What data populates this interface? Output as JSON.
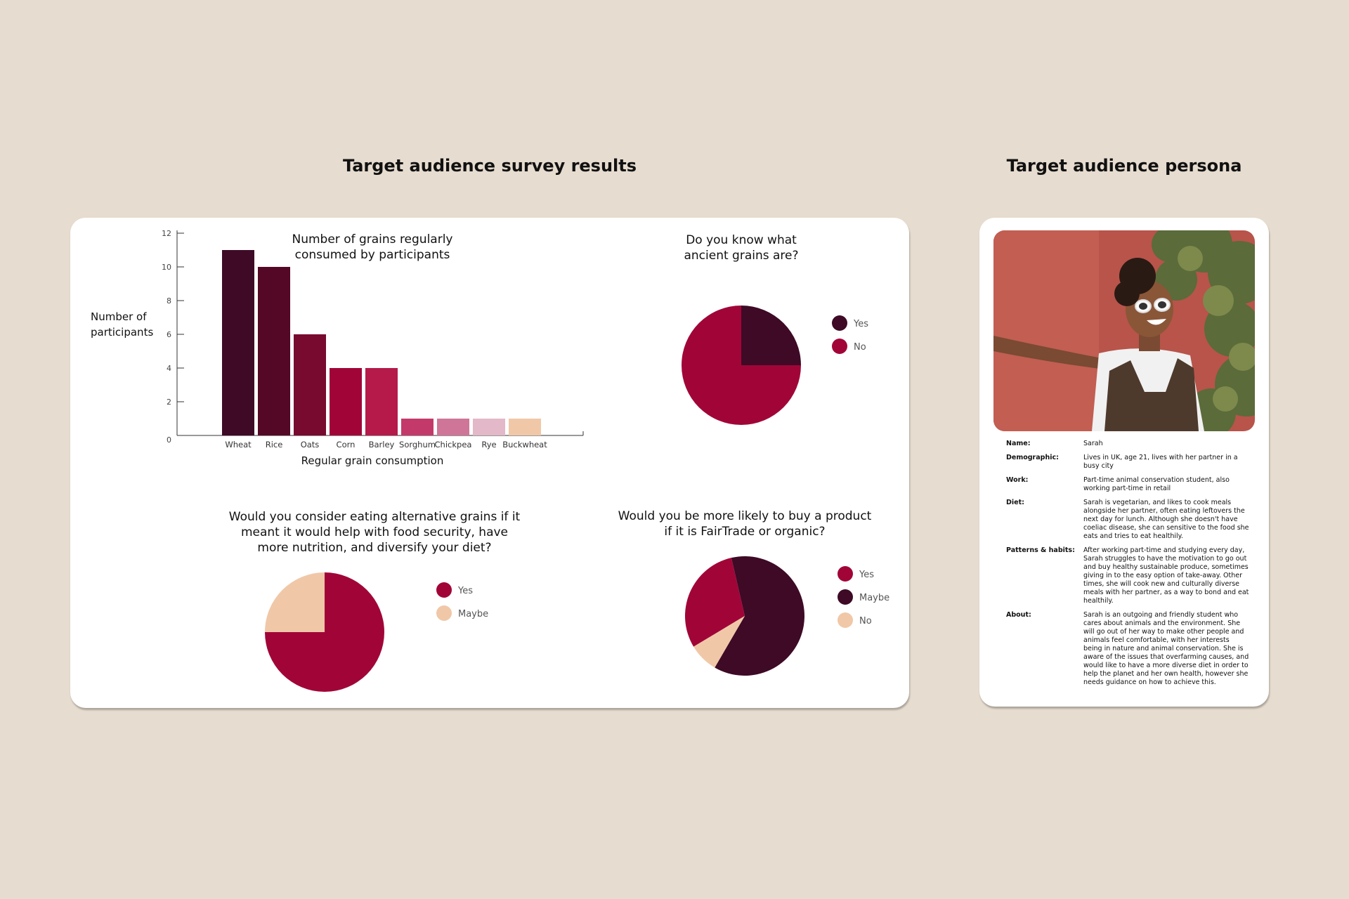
{
  "survey_title": "Target audience survey results",
  "persona_title": "Target audience persona",
  "colors": {
    "background": "#e6dccf",
    "darkest": "#3e0a26",
    "crimson": "#a10538",
    "peach": "#f0c8a8"
  },
  "chart_data": [
    {
      "type": "bar",
      "title_lines": [
        "Number of grains regularly",
        "consumed by participants"
      ],
      "xlabel": "Regular grain consumption",
      "ylabel_lines": [
        "Number of",
        "participants"
      ],
      "categories": [
        "Wheat",
        "Rice",
        "Oats",
        "Corn",
        "Barley",
        "Sorghum",
        "Chickpea",
        "Rye",
        "Buckwheat"
      ],
      "values": [
        11,
        10,
        6,
        4,
        4,
        1,
        1,
        1,
        1
      ],
      "colors": [
        "#3e0a26",
        "#540826",
        "#78092f",
        "#a10538",
        "#b51a4b",
        "#c33a6a",
        "#cf7598",
        "#e3b8c8",
        "#f0c8a8"
      ],
      "ylim": [
        0,
        12
      ],
      "yticks": [
        0,
        2,
        4,
        6,
        8,
        10,
        12
      ]
    },
    {
      "type": "pie",
      "title_lines": [
        "Do you know what",
        "ancient grains are?"
      ],
      "labels": [
        "Yes",
        "No"
      ],
      "values": [
        25,
        75
      ],
      "colors": [
        "#3e0a26",
        "#a10538"
      ],
      "legend": "right"
    },
    {
      "type": "pie",
      "title_lines": [
        "Would you consider eating alternative grains if it",
        "meant it would help with food security, have",
        "more nutrition, and diversify your diet?"
      ],
      "labels": [
        "Yes",
        "Maybe"
      ],
      "values": [
        75,
        25
      ],
      "colors": [
        "#a10538",
        "#f0c8a8"
      ],
      "legend": "right"
    },
    {
      "type": "pie",
      "title_lines": [
        "Would you be more likely to buy a product",
        "if it is FairTrade or organic?"
      ],
      "labels": [
        "Yes",
        "Maybe",
        "No"
      ],
      "values": [
        30,
        62,
        8
      ],
      "colors": [
        "#a10538",
        "#3e0a26",
        "#f0c8a8"
      ],
      "legend": "right"
    }
  ],
  "persona": {
    "rows": [
      {
        "label": "Name:",
        "value": "Sarah"
      },
      {
        "label": "Demographic:",
        "value": "Lives in UK, age 21, lives with her partner in a busy city"
      },
      {
        "label": "Work:",
        "value": "Part-time animal conservation student, also working part-time in retail"
      },
      {
        "label": "Diet:",
        "value": "Sarah is vegetarian, and likes to cook meals alongside her partner, often eating leftovers the next day for lunch. Although she doesn't have coeliac disease, she can sensitive to the food she eats and tries to eat healthily."
      },
      {
        "label": "Patterns & habits:",
        "value": "After working part-time and studying every day, Sarah struggles to have the motivation to go out and buy healthy sustainable produce, sometimes giving in to the easy option of take-away. Other times, she will cook new and culturally diverse meals with her partner, as a way to bond and eat healthily."
      },
      {
        "label": "About:",
        "value": "Sarah is an outgoing and friendly student who cares about animals and the environment. She will go out of her way to make other people and animals feel comfortable, with her interests being in nature and animal conservation. She is aware of the issues that overfarming causes, and would like to have a more diverse diet in order to help the planet and her own health, however she needs guidance on how to achieve this."
      }
    ]
  }
}
